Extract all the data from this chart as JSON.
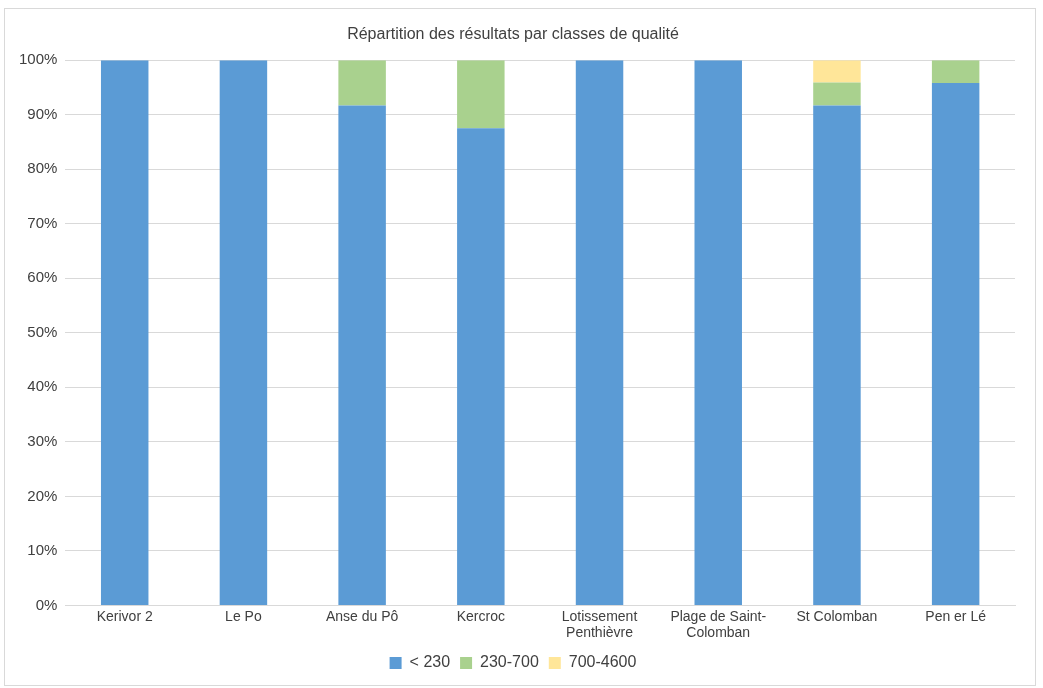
{
  "chart_data": {
    "type": "bar",
    "stacked": true,
    "title": "Répartition des résultats par classes de qualité",
    "categories": [
      "Kerivor 2",
      "Le Po",
      "Anse du Pô",
      "Kercroc",
      "Lotissement Penthièvre",
      "Plage de Saint-Colomban",
      "St Colomban",
      "Pen er Lé"
    ],
    "series": [
      {
        "name": "< 230",
        "color": "#5b9bd5",
        "values": [
          100,
          100,
          91.7,
          87.5,
          100,
          100,
          91.7,
          95.8
        ]
      },
      {
        "name": "230-700",
        "color": "#a9d18e",
        "values": [
          0,
          0,
          8.3,
          12.5,
          0,
          0,
          4.2,
          4.2
        ]
      },
      {
        "name": "700-4600",
        "color": "#ffe699",
        "values": [
          0,
          0,
          0,
          0,
          0,
          0,
          4.1,
          0
        ]
      }
    ],
    "ylim": [
      0,
      100
    ],
    "yticks": [
      {
        "value": 0,
        "label": "0%"
      },
      {
        "value": 10,
        "label": "10%"
      },
      {
        "value": 20,
        "label": "20%"
      },
      {
        "value": 30,
        "label": "30%"
      },
      {
        "value": 40,
        "label": "40%"
      },
      {
        "value": 50,
        "label": "50%"
      },
      {
        "value": 60,
        "label": "60%"
      },
      {
        "value": 70,
        "label": "70%"
      },
      {
        "value": 80,
        "label": "80%"
      },
      {
        "value": 90,
        "label": "90%"
      },
      {
        "value": 100,
        "label": "100%"
      }
    ],
    "grid": "y",
    "legend": "bottom"
  }
}
